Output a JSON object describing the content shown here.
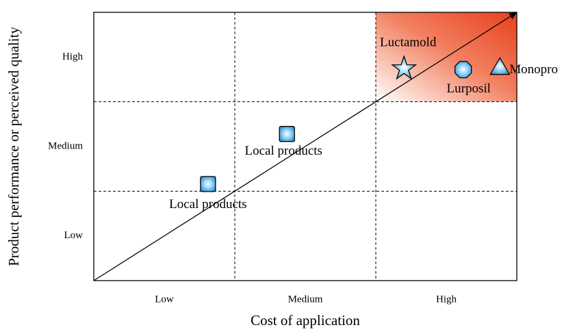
{
  "chart_data": {
    "type": "scatter",
    "xlabel": "Cost of application",
    "ylabel": "Product performance or perceived quality",
    "xlim": [
      0,
      3
    ],
    "ylim": [
      0,
      3
    ],
    "xticks": [
      {
        "value": 0.5,
        "label": "Low"
      },
      {
        "value": 1.5,
        "label": "Medium"
      },
      {
        "value": 2.5,
        "label": "High"
      }
    ],
    "yticks": [
      {
        "value": 0.5,
        "label": "Low"
      },
      {
        "value": 1.5,
        "label": "Medium"
      },
      {
        "value": 2.5,
        "label": "High"
      }
    ],
    "color": "#4fb0e6",
    "points": [
      {
        "name": "Local products",
        "x": 0.81,
        "y": 1.08,
        "marker": "square"
      },
      {
        "name": "Local products",
        "x": 1.37,
        "y": 1.64,
        "marker": "square"
      },
      {
        "name": "Luctamold",
        "x": 2.2,
        "y": 2.37,
        "marker": "star"
      },
      {
        "name": "Lurposil",
        "x": 2.62,
        "y": 2.36,
        "marker": "octagon"
      },
      {
        "name": "Monopro",
        "x": 2.88,
        "y": 2.39,
        "marker": "triangle"
      }
    ]
  }
}
